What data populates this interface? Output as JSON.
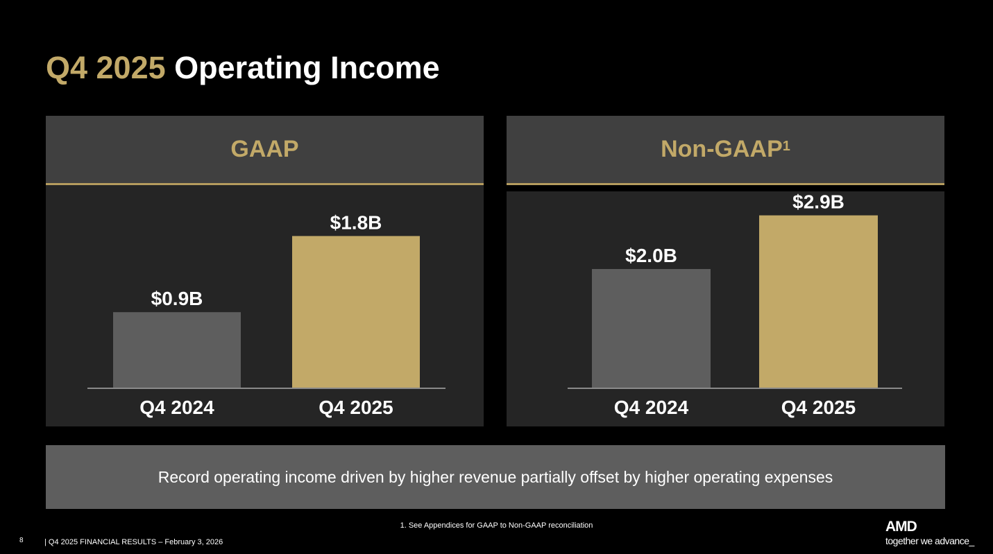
{
  "title": {
    "highlight": "Q4 2025",
    "rest": " Operating Income"
  },
  "panels": [
    {
      "header": "GAAP",
      "sup": ""
    },
    {
      "header": "Non-GAAP",
      "sup": "1"
    }
  ],
  "chart_data": [
    {
      "type": "bar",
      "title": "GAAP",
      "categories": [
        "Q4 2024",
        "Q4 2025"
      ],
      "values": [
        0.9,
        1.8
      ],
      "data_labels": [
        "$0.9B",
        "$1.8B"
      ],
      "colors": [
        "#5e5e5e",
        "#c2a968"
      ],
      "unit": "$B"
    },
    {
      "type": "bar",
      "title": "Non-GAAP",
      "categories": [
        "Q4 2024",
        "Q4 2025"
      ],
      "values": [
        2.0,
        2.9
      ],
      "data_labels": [
        "$2.0B",
        "$2.9B"
      ],
      "colors": [
        "#5e5e5e",
        "#c2a968"
      ],
      "unit": "$B"
    }
  ],
  "callout": "Record operating income driven by higher revenue partially offset by higher operating expenses",
  "footnote": "1. See Appendices for GAAP to Non-GAAP reconciliation",
  "footer": {
    "page": "8",
    "text": "|   Q4 2025 FINANCIAL RESULTS – February 3, 2026"
  },
  "logo": {
    "brand": "AMD",
    "tagline": "together we advance_"
  }
}
